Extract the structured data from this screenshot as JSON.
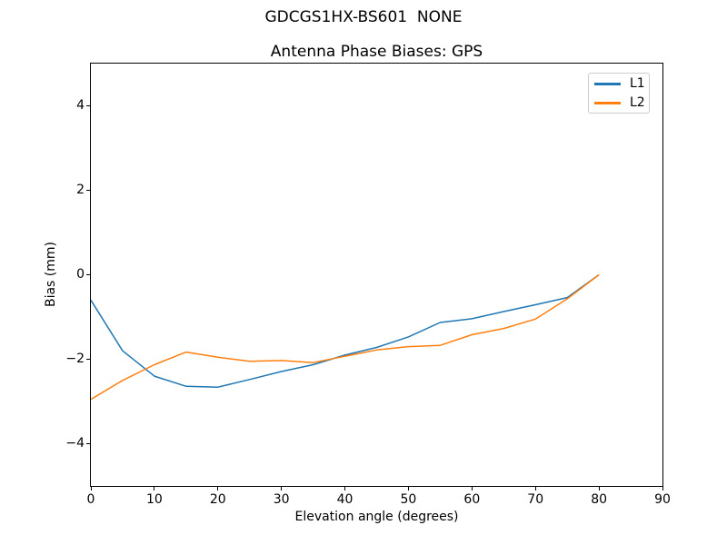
{
  "chart_data": {
    "type": "line",
    "suptitle": "GDCGS1HX-BS601  NONE",
    "title": "Antenna Phase Biases: GPS",
    "xlabel": "Elevation angle (degrees)",
    "ylabel": "Bias (mm)",
    "xlim": [
      0,
      90
    ],
    "ylim": [
      -5,
      5
    ],
    "xticks": [
      0,
      10,
      20,
      30,
      40,
      50,
      60,
      70,
      80,
      90
    ],
    "yticks": [
      -4,
      -2,
      0,
      2,
      4
    ],
    "grid": false,
    "legend": {
      "position": "upper right"
    },
    "x": [
      0,
      5,
      10,
      15,
      20,
      25,
      30,
      35,
      40,
      45,
      50,
      55,
      60,
      65,
      70,
      75,
      80
    ],
    "series": [
      {
        "name": "L1",
        "color": "#1f77b4",
        "values": [
          -0.6,
          -1.8,
          -2.4,
          -2.64,
          -2.66,
          -2.48,
          -2.29,
          -2.13,
          -1.9,
          -1.72,
          -1.47,
          -1.13,
          -1.04,
          -0.87,
          -0.71,
          -0.54,
          0.0
        ]
      },
      {
        "name": "L2",
        "color": "#ff7f0e",
        "values": [
          -2.95,
          -2.5,
          -2.13,
          -1.83,
          -1.95,
          -2.05,
          -2.03,
          -2.08,
          -1.93,
          -1.78,
          -1.7,
          -1.67,
          -1.42,
          -1.27,
          -1.05,
          -0.57,
          0.0
        ]
      }
    ]
  }
}
